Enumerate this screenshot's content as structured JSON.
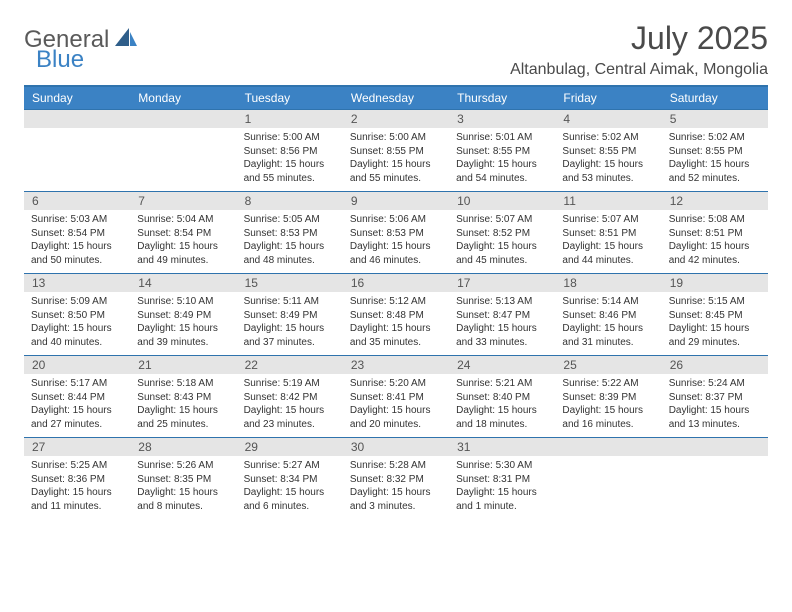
{
  "brand": {
    "name_part1": "General",
    "name_part2": "Blue"
  },
  "title": "July 2025",
  "location": "Altanbulag, Central Aimak, Mongolia",
  "colors": {
    "header_bg": "#3b82c4",
    "border": "#2f73ad",
    "daynum_bg": "#e5e5e5",
    "text": "#333333",
    "title_text": "#4a4a4a"
  },
  "day_names": [
    "Sunday",
    "Monday",
    "Tuesday",
    "Wednesday",
    "Thursday",
    "Friday",
    "Saturday"
  ],
  "weeks": [
    [
      {
        "num": "",
        "sunrise": "",
        "sunset": "",
        "daylight": ""
      },
      {
        "num": "",
        "sunrise": "",
        "sunset": "",
        "daylight": ""
      },
      {
        "num": "1",
        "sunrise": "Sunrise: 5:00 AM",
        "sunset": "Sunset: 8:56 PM",
        "daylight": "Daylight: 15 hours and 55 minutes."
      },
      {
        "num": "2",
        "sunrise": "Sunrise: 5:00 AM",
        "sunset": "Sunset: 8:55 PM",
        "daylight": "Daylight: 15 hours and 55 minutes."
      },
      {
        "num": "3",
        "sunrise": "Sunrise: 5:01 AM",
        "sunset": "Sunset: 8:55 PM",
        "daylight": "Daylight: 15 hours and 54 minutes."
      },
      {
        "num": "4",
        "sunrise": "Sunrise: 5:02 AM",
        "sunset": "Sunset: 8:55 PM",
        "daylight": "Daylight: 15 hours and 53 minutes."
      },
      {
        "num": "5",
        "sunrise": "Sunrise: 5:02 AM",
        "sunset": "Sunset: 8:55 PM",
        "daylight": "Daylight: 15 hours and 52 minutes."
      }
    ],
    [
      {
        "num": "6",
        "sunrise": "Sunrise: 5:03 AM",
        "sunset": "Sunset: 8:54 PM",
        "daylight": "Daylight: 15 hours and 50 minutes."
      },
      {
        "num": "7",
        "sunrise": "Sunrise: 5:04 AM",
        "sunset": "Sunset: 8:54 PM",
        "daylight": "Daylight: 15 hours and 49 minutes."
      },
      {
        "num": "8",
        "sunrise": "Sunrise: 5:05 AM",
        "sunset": "Sunset: 8:53 PM",
        "daylight": "Daylight: 15 hours and 48 minutes."
      },
      {
        "num": "9",
        "sunrise": "Sunrise: 5:06 AM",
        "sunset": "Sunset: 8:53 PM",
        "daylight": "Daylight: 15 hours and 46 minutes."
      },
      {
        "num": "10",
        "sunrise": "Sunrise: 5:07 AM",
        "sunset": "Sunset: 8:52 PM",
        "daylight": "Daylight: 15 hours and 45 minutes."
      },
      {
        "num": "11",
        "sunrise": "Sunrise: 5:07 AM",
        "sunset": "Sunset: 8:51 PM",
        "daylight": "Daylight: 15 hours and 44 minutes."
      },
      {
        "num": "12",
        "sunrise": "Sunrise: 5:08 AM",
        "sunset": "Sunset: 8:51 PM",
        "daylight": "Daylight: 15 hours and 42 minutes."
      }
    ],
    [
      {
        "num": "13",
        "sunrise": "Sunrise: 5:09 AM",
        "sunset": "Sunset: 8:50 PM",
        "daylight": "Daylight: 15 hours and 40 minutes."
      },
      {
        "num": "14",
        "sunrise": "Sunrise: 5:10 AM",
        "sunset": "Sunset: 8:49 PM",
        "daylight": "Daylight: 15 hours and 39 minutes."
      },
      {
        "num": "15",
        "sunrise": "Sunrise: 5:11 AM",
        "sunset": "Sunset: 8:49 PM",
        "daylight": "Daylight: 15 hours and 37 minutes."
      },
      {
        "num": "16",
        "sunrise": "Sunrise: 5:12 AM",
        "sunset": "Sunset: 8:48 PM",
        "daylight": "Daylight: 15 hours and 35 minutes."
      },
      {
        "num": "17",
        "sunrise": "Sunrise: 5:13 AM",
        "sunset": "Sunset: 8:47 PM",
        "daylight": "Daylight: 15 hours and 33 minutes."
      },
      {
        "num": "18",
        "sunrise": "Sunrise: 5:14 AM",
        "sunset": "Sunset: 8:46 PM",
        "daylight": "Daylight: 15 hours and 31 minutes."
      },
      {
        "num": "19",
        "sunrise": "Sunrise: 5:15 AM",
        "sunset": "Sunset: 8:45 PM",
        "daylight": "Daylight: 15 hours and 29 minutes."
      }
    ],
    [
      {
        "num": "20",
        "sunrise": "Sunrise: 5:17 AM",
        "sunset": "Sunset: 8:44 PM",
        "daylight": "Daylight: 15 hours and 27 minutes."
      },
      {
        "num": "21",
        "sunrise": "Sunrise: 5:18 AM",
        "sunset": "Sunset: 8:43 PM",
        "daylight": "Daylight: 15 hours and 25 minutes."
      },
      {
        "num": "22",
        "sunrise": "Sunrise: 5:19 AM",
        "sunset": "Sunset: 8:42 PM",
        "daylight": "Daylight: 15 hours and 23 minutes."
      },
      {
        "num": "23",
        "sunrise": "Sunrise: 5:20 AM",
        "sunset": "Sunset: 8:41 PM",
        "daylight": "Daylight: 15 hours and 20 minutes."
      },
      {
        "num": "24",
        "sunrise": "Sunrise: 5:21 AM",
        "sunset": "Sunset: 8:40 PM",
        "daylight": "Daylight: 15 hours and 18 minutes."
      },
      {
        "num": "25",
        "sunrise": "Sunrise: 5:22 AM",
        "sunset": "Sunset: 8:39 PM",
        "daylight": "Daylight: 15 hours and 16 minutes."
      },
      {
        "num": "26",
        "sunrise": "Sunrise: 5:24 AM",
        "sunset": "Sunset: 8:37 PM",
        "daylight": "Daylight: 15 hours and 13 minutes."
      }
    ],
    [
      {
        "num": "27",
        "sunrise": "Sunrise: 5:25 AM",
        "sunset": "Sunset: 8:36 PM",
        "daylight": "Daylight: 15 hours and 11 minutes."
      },
      {
        "num": "28",
        "sunrise": "Sunrise: 5:26 AM",
        "sunset": "Sunset: 8:35 PM",
        "daylight": "Daylight: 15 hours and 8 minutes."
      },
      {
        "num": "29",
        "sunrise": "Sunrise: 5:27 AM",
        "sunset": "Sunset: 8:34 PM",
        "daylight": "Daylight: 15 hours and 6 minutes."
      },
      {
        "num": "30",
        "sunrise": "Sunrise: 5:28 AM",
        "sunset": "Sunset: 8:32 PM",
        "daylight": "Daylight: 15 hours and 3 minutes."
      },
      {
        "num": "31",
        "sunrise": "Sunrise: 5:30 AM",
        "sunset": "Sunset: 8:31 PM",
        "daylight": "Daylight: 15 hours and 1 minute."
      },
      {
        "num": "",
        "sunrise": "",
        "sunset": "",
        "daylight": ""
      },
      {
        "num": "",
        "sunrise": "",
        "sunset": "",
        "daylight": ""
      }
    ]
  ]
}
